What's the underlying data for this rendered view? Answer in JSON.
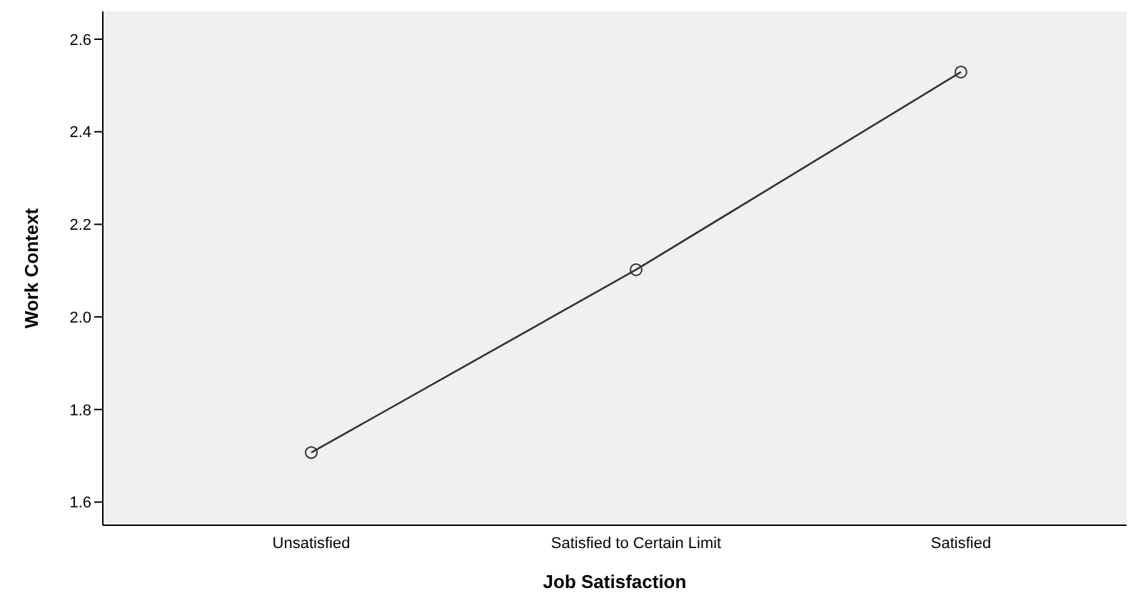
{
  "chart_data": {
    "type": "line",
    "xlabel": "Job Satisfaction",
    "ylabel": "Work Context",
    "categories": [
      "Unsatisfied",
      "Satisfied to Certain Limit",
      "Satisfied"
    ],
    "values": [
      1.707,
      2.102,
      2.529
    ],
    "color": "#333333",
    "marker": "circle",
    "ylim": [
      1.55,
      2.66
    ],
    "yticks": [
      1.6,
      1.8,
      {
        "value": 2.0,
        "label": "2.0"
      },
      2.2,
      2.4,
      2.6
    ]
  }
}
